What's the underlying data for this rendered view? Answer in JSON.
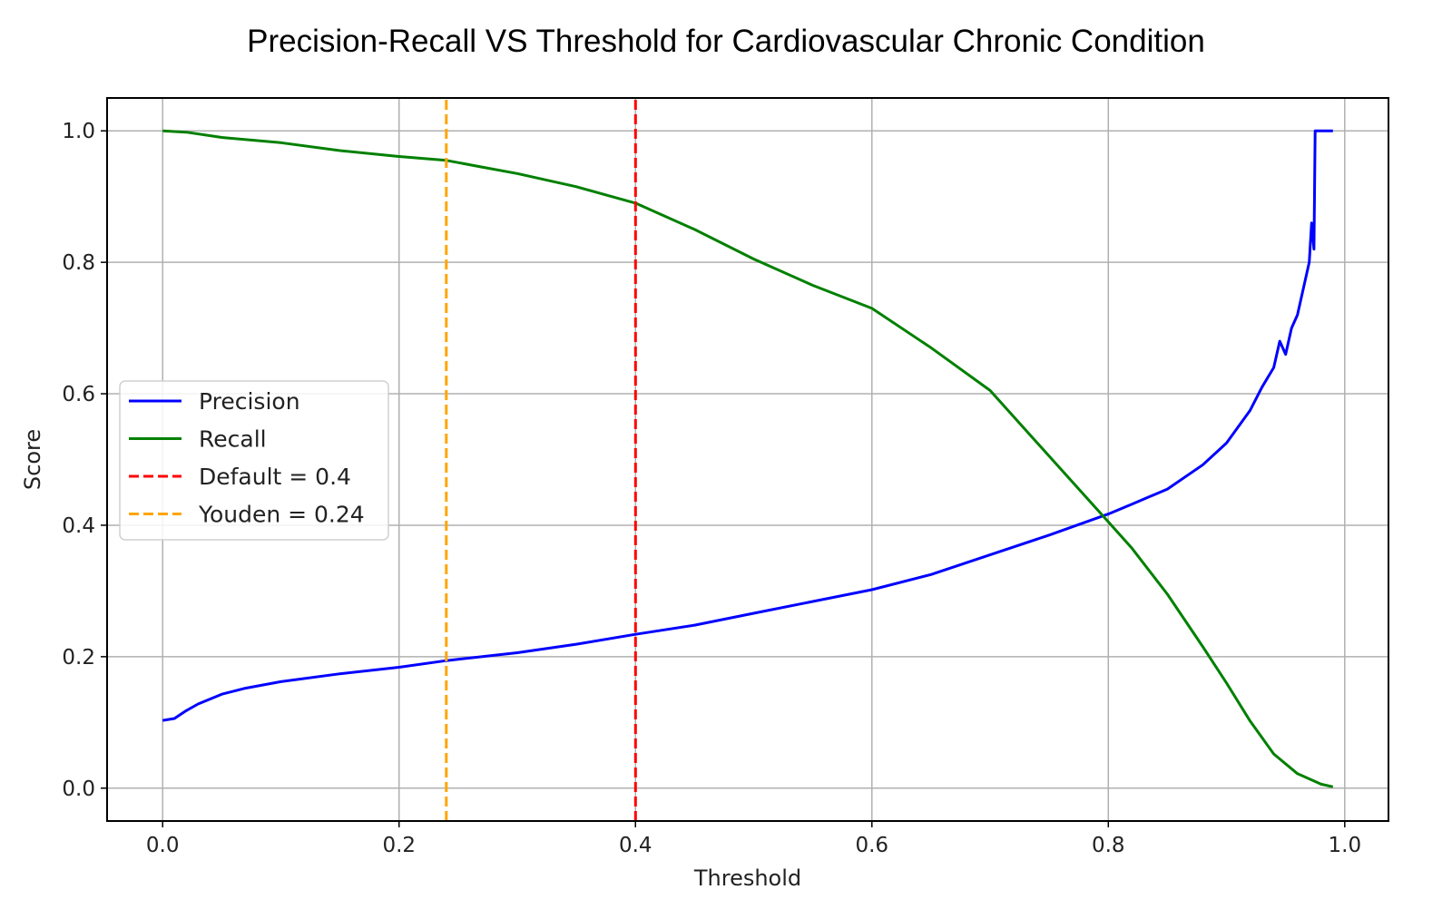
{
  "chart_data": {
    "type": "line",
    "title": "Precision-Recall VS Threshold for Cardiovascular Chronic Condition",
    "xlabel": "Threshold",
    "ylabel": "Score",
    "xlim": [
      -0.047,
      1.037
    ],
    "ylim": [
      -0.05,
      1.05
    ],
    "xticks": [
      0.0,
      0.2,
      0.4,
      0.6,
      0.8,
      1.0
    ],
    "xtick_labels": [
      "0.0",
      "0.2",
      "0.4",
      "0.6",
      "0.8",
      "1.0"
    ],
    "yticks": [
      0.0,
      0.2,
      0.4,
      0.6,
      0.8,
      1.0
    ],
    "ytick_labels": [
      "0.0",
      "0.2",
      "0.4",
      "0.6",
      "0.8",
      "1.0"
    ],
    "grid": true,
    "legend_position": "center-left",
    "series": [
      {
        "name": "Precision",
        "color": "#0000ff",
        "style": "solid",
        "x": [
          0.0,
          0.01,
          0.02,
          0.03,
          0.05,
          0.07,
          0.1,
          0.15,
          0.2,
          0.24,
          0.3,
          0.35,
          0.4,
          0.45,
          0.5,
          0.55,
          0.6,
          0.65,
          0.7,
          0.75,
          0.8,
          0.82,
          0.85,
          0.88,
          0.9,
          0.91,
          0.92,
          0.93,
          0.94,
          0.945,
          0.95,
          0.955,
          0.96,
          0.965,
          0.97,
          0.972,
          0.974,
          0.975,
          0.98,
          0.99
        ],
        "y": [
          0.103,
          0.106,
          0.118,
          0.128,
          0.143,
          0.152,
          0.162,
          0.174,
          0.184,
          0.194,
          0.206,
          0.219,
          0.234,
          0.248,
          0.266,
          0.284,
          0.302,
          0.325,
          0.355,
          0.385,
          0.417,
          0.432,
          0.455,
          0.492,
          0.525,
          0.55,
          0.575,
          0.61,
          0.64,
          0.68,
          0.66,
          0.7,
          0.72,
          0.76,
          0.8,
          0.86,
          0.82,
          1.0,
          1.0,
          1.0
        ]
      },
      {
        "name": "Recall",
        "color": "#008000",
        "style": "solid",
        "x": [
          0.0,
          0.02,
          0.05,
          0.1,
          0.15,
          0.2,
          0.24,
          0.27,
          0.3,
          0.35,
          0.38,
          0.4,
          0.45,
          0.5,
          0.55,
          0.6,
          0.65,
          0.7,
          0.75,
          0.8,
          0.82,
          0.85,
          0.88,
          0.9,
          0.92,
          0.94,
          0.96,
          0.98,
          0.99
        ],
        "y": [
          1.0,
          0.998,
          0.99,
          0.982,
          0.97,
          0.961,
          0.955,
          0.945,
          0.935,
          0.915,
          0.9,
          0.89,
          0.85,
          0.805,
          0.765,
          0.73,
          0.67,
          0.605,
          0.505,
          0.405,
          0.365,
          0.295,
          0.215,
          0.16,
          0.102,
          0.052,
          0.022,
          0.006,
          0.002
        ]
      },
      {
        "name": "Default = 0.4",
        "color": "#ff0000",
        "style": "dashed",
        "x": [
          0.4,
          0.4
        ],
        "y": [
          -0.05,
          1.05
        ]
      },
      {
        "name": "Youden = 0.24",
        "color": "#ffa500",
        "style": "dashed",
        "x": [
          0.24,
          0.24
        ],
        "y": [
          -0.05,
          1.05
        ]
      }
    ]
  }
}
